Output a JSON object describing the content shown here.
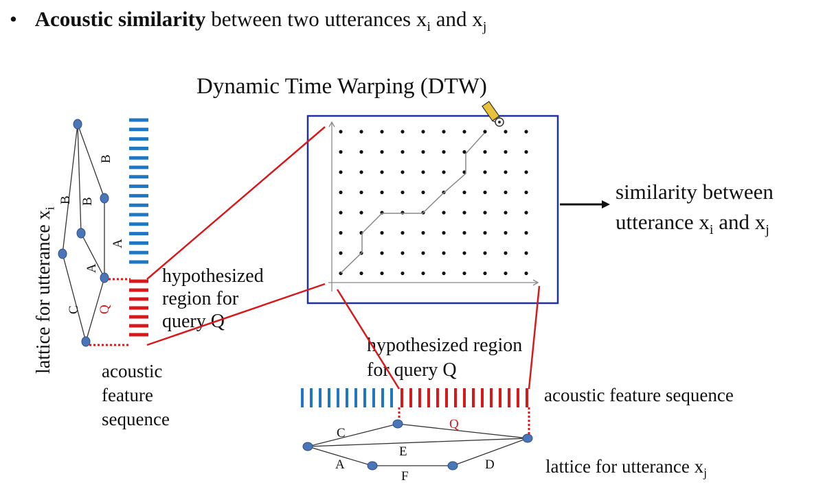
{
  "bullet": {
    "marker": "•",
    "bold": "Acoustic similarity",
    "text": " between two utterances x",
    "sub_i": "i",
    "and": " and x",
    "sub_j": "j"
  },
  "dtw": {
    "title": "Dynamic Time Warping (DTW)",
    "output_line1": "similarity between",
    "output_line2_a": "utterance x",
    "output_sub_i": "i",
    "output_line2_b": " and x",
    "output_sub_j": "j"
  },
  "left_lattice": {
    "vertical_label": "lattice for  utterance x",
    "vertical_sub": "i",
    "edge_labels": [
      "B",
      "B",
      "B",
      "A",
      "A",
      "C",
      "Q"
    ],
    "hyp_label": [
      "hypothesized",
      "region for",
      "query Q"
    ],
    "feature_label": [
      "acoustic",
      "feature",
      "sequence"
    ]
  },
  "bottom_lattice": {
    "hyp_label": [
      "hypothesized region",
      "for query Q"
    ],
    "feature_label": "acoustic feature sequence",
    "lattice_label": "lattice for  utterance  x",
    "lattice_sub": "j",
    "edge_labels": [
      "C",
      "Q",
      "E",
      "A",
      "F",
      "D"
    ]
  },
  "colors": {
    "blue": "#1f77c4",
    "red": "#d7191c",
    "box": "#1f2fa8",
    "node": "#4a76b8"
  }
}
